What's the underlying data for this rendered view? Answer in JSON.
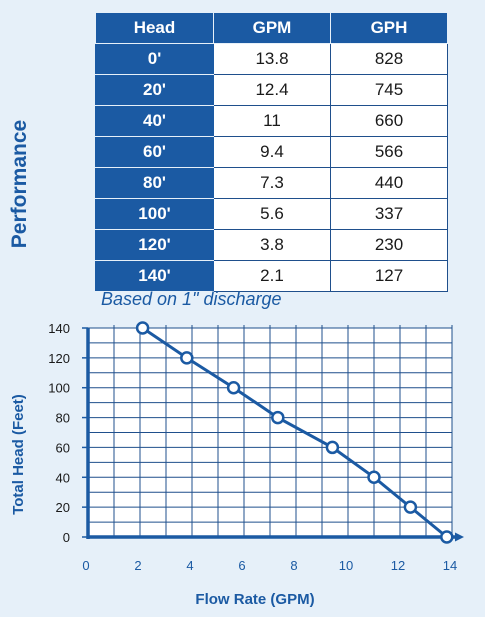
{
  "side_title": "Performance",
  "table": {
    "headers": [
      "Head",
      "GPM",
      "GPH"
    ],
    "rows": [
      [
        "0'",
        "13.8",
        "828"
      ],
      [
        "20'",
        "12.4",
        "745"
      ],
      [
        "40'",
        "11",
        "660"
      ],
      [
        "60'",
        "9.4",
        "566"
      ],
      [
        "80'",
        "7.3",
        "440"
      ],
      [
        "100'",
        "5.6",
        "337"
      ],
      [
        "120'",
        "3.8",
        "230"
      ],
      [
        "140'",
        "2.1",
        "127"
      ]
    ]
  },
  "note": "Based on 1\" discharge",
  "colors": {
    "primary": "#1b5aa3",
    "background": "#e6f0f9",
    "grid": "#1f4f8c"
  },
  "chart_data": {
    "type": "line",
    "xlabel": "Flow Rate (GPM)",
    "ylabel": "Total Head (Feet)",
    "xlim": [
      0,
      14
    ],
    "ylim": [
      0,
      140
    ],
    "x_ticks": [
      "0",
      "2",
      "4",
      "6",
      "8",
      "10",
      "12",
      "14"
    ],
    "y_ticks": [
      "0",
      "20",
      "40",
      "60",
      "80",
      "100",
      "120",
      "140"
    ],
    "grid": true,
    "marker": "hollow-circle",
    "x": [
      2.1,
      3.8,
      5.6,
      7.3,
      9.4,
      11,
      12.4,
      13.8
    ],
    "y": [
      140,
      120,
      100,
      80,
      60,
      40,
      20,
      0
    ]
  }
}
